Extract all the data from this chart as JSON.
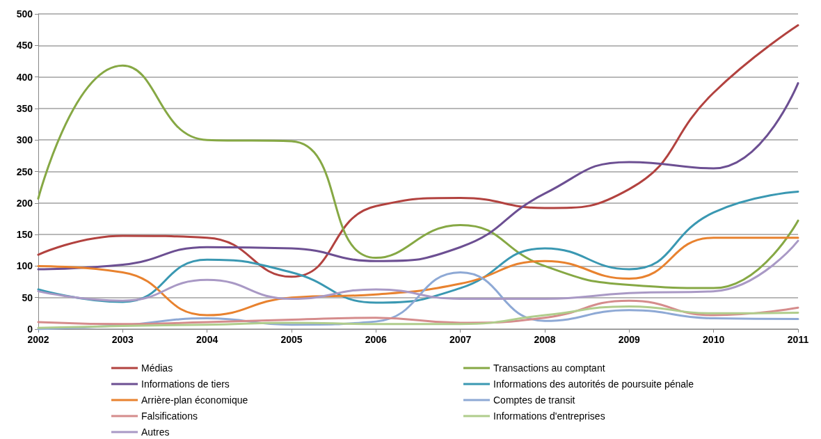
{
  "chart_data": {
    "type": "line",
    "x": [
      2002,
      2003,
      2004,
      2005,
      2006,
      2007,
      2008,
      2009,
      2010,
      2011
    ],
    "xlim": [
      2002,
      2011
    ],
    "xticks": [
      2002,
      2003,
      2004,
      2005,
      2006,
      2007,
      2008,
      2009,
      2010,
      2011
    ],
    "ylim": [
      0,
      500
    ],
    "yticks": [
      0,
      50,
      100,
      150,
      200,
      250,
      300,
      350,
      400,
      450,
      500
    ],
    "grid": "y",
    "legend": "bottom",
    "marker": "none",
    "line_style": "solid",
    "series": [
      {
        "name": "Médias",
        "color": "#b2423f",
        "values": [
          118,
          148,
          145,
          83,
          195,
          208,
          192,
          222,
          375,
          482
        ]
      },
      {
        "name": "Transactions au comptant",
        "color": "#86a844",
        "values": [
          207,
          418,
          300,
          298,
          113,
          165,
          100,
          70,
          65,
          172
        ]
      },
      {
        "name": "Informations de tiers",
        "color": "#6c4f92",
        "values": [
          95,
          102,
          130,
          128,
          108,
          130,
          215,
          265,
          255,
          390
        ]
      },
      {
        "name": "Informations des autorités de poursuite pénale",
        "color": "#3a98b2",
        "values": [
          63,
          43,
          110,
          90,
          42,
          65,
          128,
          95,
          185,
          218
        ]
      },
      {
        "name": "Arrière-plan économique",
        "color": "#e8822f",
        "values": [
          100,
          90,
          22,
          50,
          55,
          72,
          108,
          80,
          145,
          145
        ]
      },
      {
        "name": "Comptes de transit",
        "color": "#8ea9d5",
        "values": [
          0,
          6,
          17,
          7,
          12,
          90,
          13,
          30,
          17,
          16
        ]
      },
      {
        "name": "Falsifications",
        "color": "#d58c8c",
        "values": [
          11,
          8,
          11,
          15,
          18,
          10,
          18,
          45,
          22,
          34
        ]
      },
      {
        "name": "Informations d'entreprises",
        "color": "#b0cd8c",
        "values": [
          2,
          5,
          7,
          10,
          8,
          8,
          22,
          36,
          25,
          26
        ]
      },
      {
        "name": "Autres",
        "color": "#a999c5",
        "values": [
          60,
          45,
          78,
          48,
          63,
          48,
          48,
          57,
          60,
          140
        ]
      }
    ]
  }
}
